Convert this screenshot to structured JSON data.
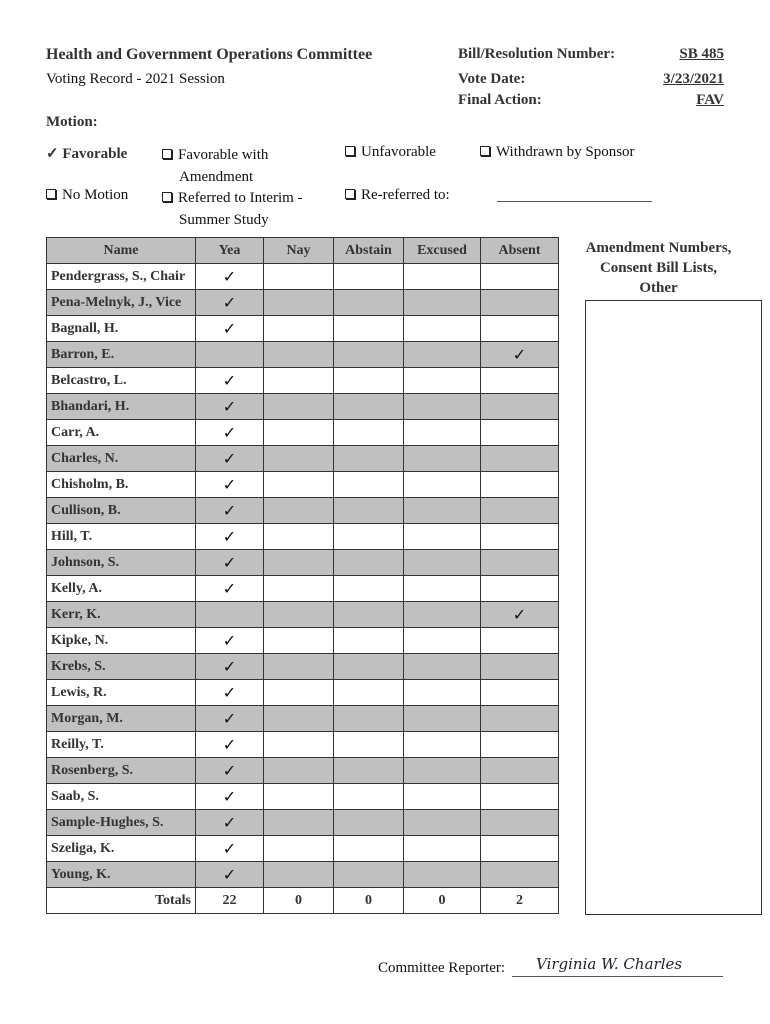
{
  "header": {
    "committee": "Health and Government Operations Committee",
    "subtitle": "Voting Record - 2021 Session",
    "bill_label": "Bill/Resolution Number:",
    "bill_value": "SB 485",
    "date_label": "Vote Date:",
    "date_value": "3/23/2021",
    "action_label": "Final Action:",
    "action_value": "FAV"
  },
  "motion": {
    "label": "Motion:",
    "options": [
      {
        "label": "Favorable",
        "checked": true
      },
      {
        "label": "Favorable with",
        "label2": "Amendment",
        "checked": false
      },
      {
        "label": "Unfavorable",
        "checked": false
      },
      {
        "label": "Withdrawn by Sponsor",
        "checked": false
      },
      {
        "label": "No Motion",
        "checked": false
      },
      {
        "label": "Referred to Interim -",
        "label2": "Summer Study",
        "checked": false
      },
      {
        "label": "Re-referred to:",
        "checked": false
      }
    ]
  },
  "table": {
    "columns": [
      "Name",
      "Yea",
      "Nay",
      "Abstain",
      "Excused",
      "Absent"
    ],
    "rows": [
      [
        "Pendergrass, S., Chair",
        "Yea"
      ],
      [
        "Pena-Melnyk, J., Vice",
        "Yea"
      ],
      [
        "Bagnall, H.",
        "Yea"
      ],
      [
        "Barron, E.",
        "Absent"
      ],
      [
        "Belcastro, L.",
        "Yea"
      ],
      [
        "Bhandari, H.",
        "Yea"
      ],
      [
        "Carr, A.",
        "Yea"
      ],
      [
        "Charles, N.",
        "Yea"
      ],
      [
        "Chisholm, B.",
        "Yea"
      ],
      [
        "Cullison, B.",
        "Yea"
      ],
      [
        "Hill, T.",
        "Yea"
      ],
      [
        "Johnson, S.",
        "Yea"
      ],
      [
        "Kelly, A.",
        "Yea"
      ],
      [
        "Kerr, K.",
        "Absent"
      ],
      [
        "Kipke, N.",
        "Yea"
      ],
      [
        "Krebs, S.",
        "Yea"
      ],
      [
        "Lewis, R.",
        "Yea"
      ],
      [
        "Morgan, M.",
        "Yea"
      ],
      [
        "Reilly, T.",
        "Yea"
      ],
      [
        "Rosenberg, S.",
        "Yea"
      ],
      [
        "Saab, S.",
        "Yea"
      ],
      [
        "Sample-Hughes, S.",
        "Yea"
      ],
      [
        "Szeliga, K.",
        "Yea"
      ],
      [
        "Young, K.",
        "Yea"
      ]
    ],
    "totals_label": "Totals",
    "totals": [
      "22",
      "0",
      "0",
      "0",
      "2"
    ],
    "check": "✓"
  },
  "side": {
    "line1": "Amendment Numbers,",
    "line2": "Consent Bill Lists,",
    "line3": "Other"
  },
  "footer": {
    "reporter_label": "Committee Reporter:",
    "signature": "Virginia W. Charles"
  }
}
